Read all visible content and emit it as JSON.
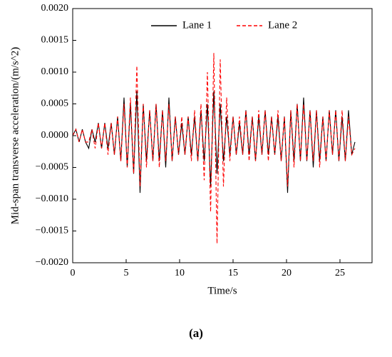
{
  "chart_data": {
    "type": "line",
    "xlabel": "Time/s",
    "ylabel": "Mid-span transverse acceleration/(m/s^2)",
    "caption": "(a)",
    "x": [
      0,
      0.3,
      0.6,
      0.9,
      1.2,
      1.5,
      1.8,
      2.1,
      2.4,
      2.7,
      3.0,
      3.3,
      3.6,
      3.9,
      4.2,
      4.5,
      4.8,
      5.1,
      5.4,
      5.7,
      6.0,
      6.3,
      6.6,
      6.9,
      7.2,
      7.5,
      7.8,
      8.1,
      8.4,
      8.7,
      9.0,
      9.3,
      9.6,
      9.9,
      10.2,
      10.5,
      10.8,
      11.1,
      11.4,
      11.7,
      12.0,
      12.3,
      12.6,
      12.9,
      13.2,
      13.5,
      13.8,
      14.1,
      14.4,
      14.7,
      15.0,
      15.3,
      15.6,
      15.9,
      16.2,
      16.5,
      16.8,
      17.1,
      17.4,
      17.7,
      18.0,
      18.3,
      18.6,
      18.9,
      19.2,
      19.5,
      19.8,
      20.1,
      20.4,
      20.7,
      21.0,
      21.3,
      21.6,
      21.9,
      22.2,
      22.5,
      22.8,
      23.1,
      23.4,
      23.7,
      24.0,
      24.3,
      24.6,
      24.9,
      25.2,
      25.5,
      25.8,
      26.1,
      26.4
    ],
    "series": [
      {
        "name": "Lane 1",
        "color": "#000000",
        "dash": false,
        "values": [
          0,
          0.0001,
          -0.0001,
          0.0001,
          -0.0001,
          -0.0002,
          0.0001,
          -0.0001,
          0.0002,
          -0.0002,
          0.0002,
          -0.0002,
          0.0002,
          -0.0003,
          0.0003,
          -0.0004,
          0.0006,
          -0.0005,
          0.0005,
          -0.0006,
          0.0007,
          -0.0009,
          0.0005,
          -0.0004,
          0.0004,
          -0.0004,
          0.0005,
          -0.0004,
          0.0004,
          -0.0005,
          0.0006,
          -0.0004,
          0.0003,
          -0.0003,
          0.0002,
          -0.0003,
          0.0003,
          -0.0003,
          0.0003,
          -0.0004,
          0.0004,
          -0.0004,
          0.0005,
          -0.0008,
          0.0007,
          -0.0006,
          0.0005,
          -0.0004,
          0.0003,
          -0.0003,
          0.0003,
          -0.0003,
          0.0002,
          -0.0003,
          0.0004,
          -0.0003,
          0.0003,
          -0.0004,
          0.0003,
          -0.0003,
          0.0004,
          -0.0003,
          0.0003,
          -0.0003,
          0.0003,
          -0.0004,
          0.0003,
          -0.0009,
          0.0004,
          -0.0004,
          0.0005,
          -0.0004,
          0.0006,
          -0.0004,
          0.0004,
          -0.0005,
          0.0004,
          -0.0004,
          0.0003,
          -0.0004,
          0.0004,
          -0.0003,
          0.0004,
          -0.0004,
          0.0003,
          -0.0004,
          0.0004,
          -0.0003,
          -0.0001
        ]
      },
      {
        "name": "Lane 2",
        "color": "#ff0000",
        "dash": true,
        "values": [
          0,
          0.0001,
          -0.0001,
          0.0001,
          -0.0001,
          -0.0001,
          0.0001,
          -0.0002,
          0.0002,
          -0.0002,
          0.0002,
          -0.0003,
          0.0002,
          -0.0003,
          0.0003,
          -0.0004,
          0.0005,
          -0.0005,
          0.0006,
          -0.0006,
          0.0011,
          -0.0008,
          0.0005,
          -0.0005,
          0.0004,
          -0.0004,
          0.0005,
          -0.0005,
          0.0004,
          -0.0004,
          0.0005,
          -0.0004,
          0.0003,
          -0.0003,
          0.0003,
          -0.0003,
          0.0003,
          -0.0004,
          0.0004,
          -0.0004,
          0.0005,
          -0.0007,
          0.001,
          -0.0012,
          0.0013,
          -0.0017,
          0.0012,
          -0.0008,
          0.0006,
          -0.0004,
          0.0003,
          -0.0003,
          0.0003,
          -0.0003,
          0.0004,
          -0.0004,
          0.0003,
          -0.0004,
          0.0004,
          -0.0003,
          0.0004,
          -0.0004,
          0.0003,
          -0.0003,
          0.0004,
          -0.0004,
          0.0003,
          -0.0008,
          0.0004,
          -0.0005,
          0.0005,
          -0.0004,
          0.0005,
          -0.0004,
          0.0004,
          -0.0004,
          0.0004,
          -0.0005,
          0.0003,
          -0.0004,
          0.0004,
          -0.0003,
          0.0004,
          -0.0004,
          0.0004,
          -0.0004,
          0.0003,
          -0.0003,
          -0.0002
        ]
      }
    ],
    "xlim": [
      0,
      28
    ],
    "xticks": [
      0,
      5,
      10,
      15,
      20,
      25
    ],
    "ylim": [
      -0.002,
      0.002
    ],
    "yticks": [
      {
        "value": -0.002,
        "label": "−0.0020"
      },
      {
        "value": -0.0015,
        "label": "−0.0015"
      },
      {
        "value": -0.001,
        "label": "−0.0010"
      },
      {
        "value": -0.0005,
        "label": "−0.0005"
      },
      {
        "value": 0,
        "label": "0.0000"
      },
      {
        "value": 0.0005,
        "label": "0.0005"
      },
      {
        "value": 0.001,
        "label": "0.0010"
      },
      {
        "value": 0.0015,
        "label": "0.0015"
      },
      {
        "value": 0.002,
        "label": "0.0020"
      }
    ],
    "grid": false,
    "legend": "top"
  }
}
